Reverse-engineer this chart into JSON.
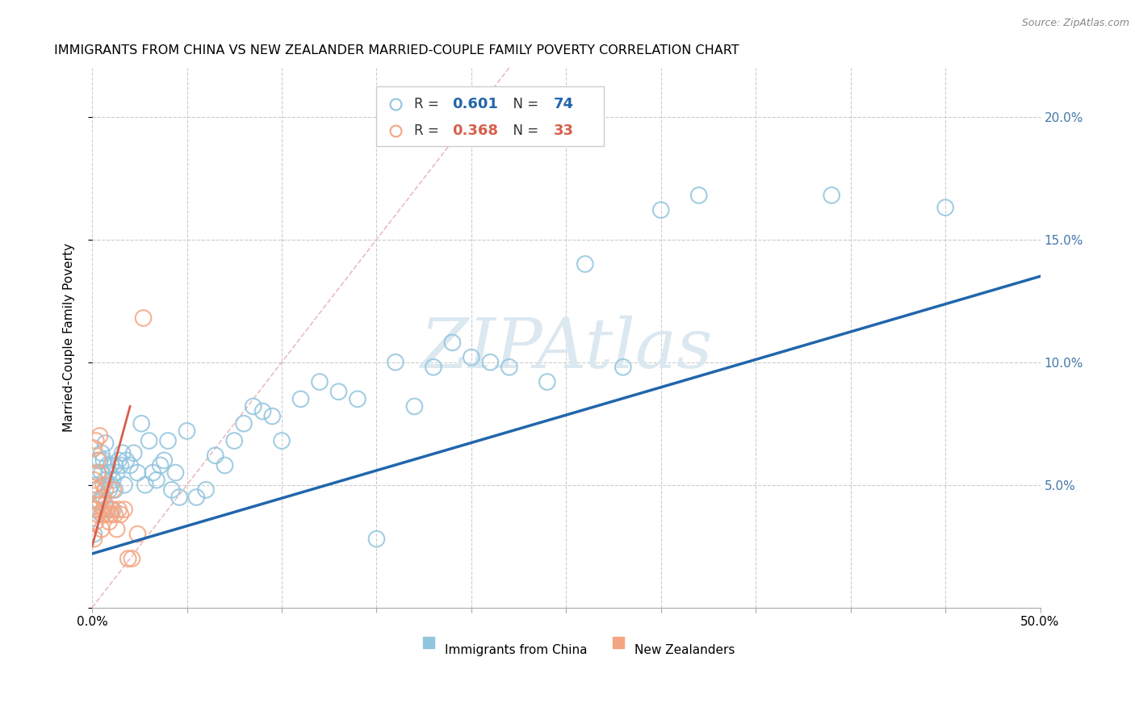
{
  "title": "IMMIGRANTS FROM CHINA VS NEW ZEALANDER MARRIED-COUPLE FAMILY POVERTY CORRELATION CHART",
  "source": "Source: ZipAtlas.com",
  "xlabel_blue": "Immigrants from China",
  "xlabel_pink": "New Zealanders",
  "ylabel": "Married-Couple Family Poverty",
  "xlim": [
    0,
    0.5
  ],
  "ylim": [
    0,
    0.22
  ],
  "yticks": [
    0.0,
    0.05,
    0.1,
    0.15,
    0.2
  ],
  "yticklabels_right": [
    "",
    "5.0%",
    "10.0%",
    "15.0%",
    "20.0%"
  ],
  "xtick_positions": [
    0.0,
    0.05,
    0.1,
    0.15,
    0.2,
    0.25,
    0.3,
    0.35,
    0.4,
    0.45,
    0.5
  ],
  "legend_r_blue": "0.601",
  "legend_n_blue": "74",
  "legend_r_pink": "0.368",
  "legend_n_pink": "33",
  "blue_color": "#92c5de",
  "pink_color": "#f4a582",
  "blue_line_color": "#2166ac",
  "pink_line_color": "#d6604d",
  "diag_line_color": "#e8b4bd",
  "watermark": "ZIPAtlas",
  "watermark_color": "#dce8f0",
  "blue_dots_x": [
    0.001,
    0.002,
    0.002,
    0.003,
    0.003,
    0.004,
    0.004,
    0.005,
    0.005,
    0.005,
    0.006,
    0.006,
    0.007,
    0.007,
    0.008,
    0.008,
    0.009,
    0.009,
    0.01,
    0.01,
    0.011,
    0.011,
    0.012,
    0.012,
    0.013,
    0.014,
    0.015,
    0.016,
    0.017,
    0.018,
    0.02,
    0.022,
    0.024,
    0.026,
    0.028,
    0.03,
    0.032,
    0.034,
    0.036,
    0.038,
    0.04,
    0.042,
    0.044,
    0.046,
    0.05,
    0.055,
    0.06,
    0.065,
    0.07,
    0.075,
    0.08,
    0.085,
    0.09,
    0.095,
    0.1,
    0.11,
    0.12,
    0.13,
    0.14,
    0.15,
    0.16,
    0.17,
    0.18,
    0.19,
    0.2,
    0.21,
    0.22,
    0.24,
    0.26,
    0.28,
    0.3,
    0.32,
    0.39,
    0.45
  ],
  "blue_dots_y": [
    0.03,
    0.04,
    0.05,
    0.048,
    0.055,
    0.043,
    0.06,
    0.038,
    0.055,
    0.063,
    0.045,
    0.06,
    0.052,
    0.067,
    0.04,
    0.058,
    0.048,
    0.055,
    0.05,
    0.058,
    0.04,
    0.052,
    0.048,
    0.058,
    0.055,
    0.06,
    0.058,
    0.063,
    0.05,
    0.06,
    0.058,
    0.063,
    0.055,
    0.075,
    0.05,
    0.068,
    0.055,
    0.052,
    0.058,
    0.06,
    0.068,
    0.048,
    0.055,
    0.045,
    0.072,
    0.045,
    0.048,
    0.062,
    0.058,
    0.068,
    0.075,
    0.082,
    0.08,
    0.078,
    0.068,
    0.085,
    0.092,
    0.088,
    0.085,
    0.028,
    0.1,
    0.082,
    0.098,
    0.108,
    0.102,
    0.1,
    0.098,
    0.092,
    0.14,
    0.098,
    0.162,
    0.168,
    0.168,
    0.163
  ],
  "pink_dots_x": [
    0.001,
    0.001,
    0.001,
    0.001,
    0.002,
    0.002,
    0.002,
    0.003,
    0.003,
    0.003,
    0.004,
    0.004,
    0.005,
    0.005,
    0.006,
    0.006,
    0.006,
    0.007,
    0.007,
    0.008,
    0.009,
    0.01,
    0.01,
    0.011,
    0.012,
    0.013,
    0.014,
    0.015,
    0.017,
    0.019,
    0.021,
    0.024,
    0.027
  ],
  "pink_dots_y": [
    0.028,
    0.04,
    0.052,
    0.065,
    0.035,
    0.048,
    0.068,
    0.038,
    0.055,
    0.06,
    0.042,
    0.07,
    0.032,
    0.045,
    0.038,
    0.05,
    0.04,
    0.042,
    0.048,
    0.038,
    0.035,
    0.04,
    0.038,
    0.048,
    0.038,
    0.032,
    0.04,
    0.038,
    0.04,
    0.02,
    0.02,
    0.03,
    0.118
  ],
  "blue_regline_x": [
    0.0,
    0.5
  ],
  "blue_regline_y": [
    0.022,
    0.135
  ],
  "pink_regline_x": [
    0.0,
    0.02
  ],
  "pink_regline_y": [
    0.025,
    0.082
  ],
  "diag_line_x": [
    0.0,
    0.22
  ],
  "diag_line_y": [
    0.0,
    0.22
  ]
}
